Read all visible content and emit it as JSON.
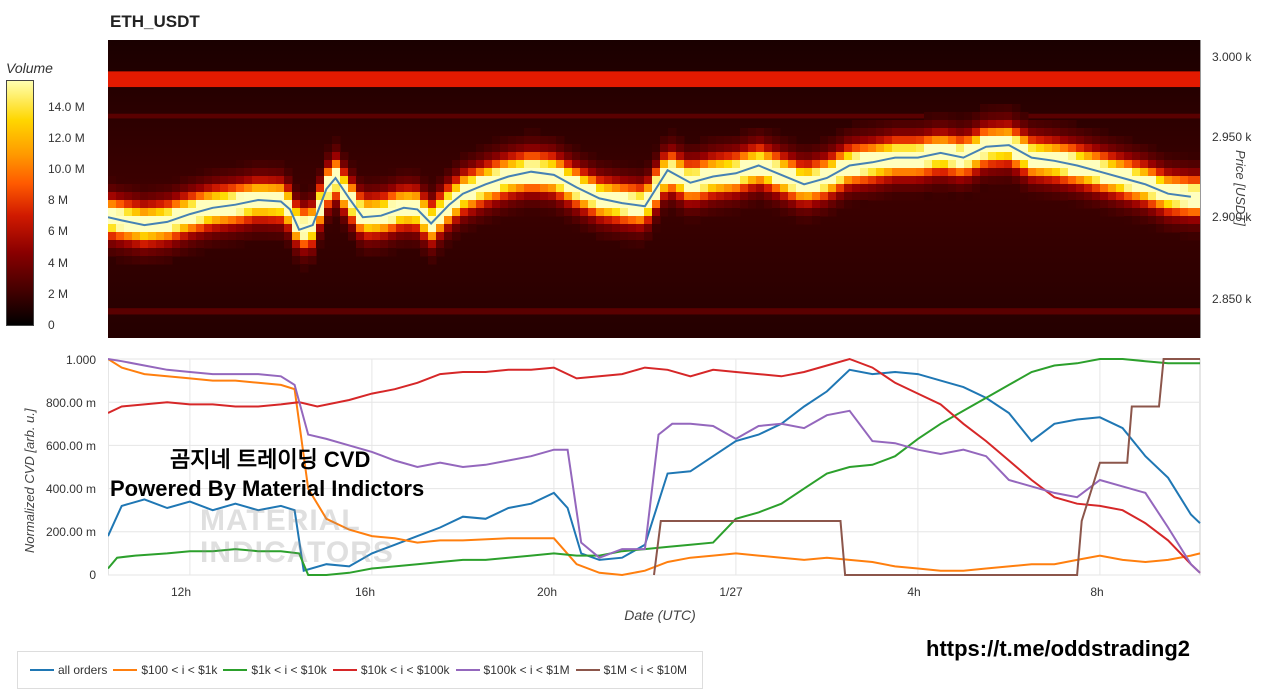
{
  "title": "ETH_USDT",
  "colorbar": {
    "title": "Volume",
    "ticks": [
      "14.0 M",
      "12.0 M",
      "10.0 M",
      "8 M",
      "6 M",
      "4 M",
      "2 M",
      "0"
    ]
  },
  "price_axis": {
    "label": "Price [USDT]",
    "ticks": [
      "3.000 k",
      "2.950 k",
      "2.900 k",
      "2.850 k"
    ]
  },
  "cvd_axis": {
    "label": "Normalized CVD [arb. u.]",
    "ticks": [
      "1.000",
      "800.00 m",
      "600.00 m",
      "400.00 m",
      "200.00 m",
      "0"
    ]
  },
  "x_axis": {
    "label": "Date (UTC)",
    "ticks": [
      "12h",
      "16h",
      "20h",
      "1/27",
      "4h",
      "8h"
    ]
  },
  "overlay": {
    "line1": "곰지네 트레이딩 CVD",
    "line2": "Powered By Material Indictors",
    "watermark_line1": "MATERIAL",
    "watermark_line2": "INDICATORS",
    "link": "https://t.me/oddstrading2"
  },
  "legend": [
    {
      "label": "all orders",
      "color": "#1f77b4"
    },
    {
      "label": "$100 < i < $1k",
      "color": "#ff7f0e"
    },
    {
      "label": "$1k < i < $10k",
      "color": "#2ca02c"
    },
    {
      "label": "$10k < i < $100k",
      "color": "#d62728"
    },
    {
      "label": "$100k < i < $1M",
      "color": "#9467bd"
    },
    {
      "label": "$1M < i < $10M",
      "color": "#8c564b"
    }
  ],
  "chart_data": [
    {
      "type": "heatmap",
      "title": "ETH_USDT",
      "ylabel": "Price [USDT]",
      "ylim": [
        2823,
        3013
      ],
      "colorbar_label": "Volume",
      "colorbar_range": [
        0,
        15000000
      ],
      "price_series": {
        "name": "price",
        "color": "#4682b4",
        "hours": [
          10.2,
          10.5,
          11.0,
          11.5,
          12.0,
          12.5,
          13.0,
          13.5,
          14.0,
          14.2,
          14.4,
          14.7,
          15.0,
          15.2,
          15.5,
          15.8,
          16.2,
          16.7,
          17.0,
          17.3,
          17.7,
          18.0,
          18.5,
          19.0,
          19.5,
          20.0,
          20.5,
          21.0,
          21.5,
          22.0,
          22.5,
          23.0,
          23.5,
          24.0,
          24.5,
          25.0,
          25.5,
          26.0,
          26.5,
          27.0,
          27.5,
          28.0,
          28.5,
          29.0,
          29.5,
          30.0,
          30.5,
          31.0,
          31.5,
          32.0,
          32.5,
          33.0,
          33.5,
          34.0
        ],
        "price": [
          2900,
          2898,
          2895,
          2897,
          2902,
          2906,
          2908,
          2911,
          2910,
          2905,
          2892,
          2895,
          2918,
          2925,
          2912,
          2900,
          2901,
          2906,
          2905,
          2896,
          2908,
          2915,
          2921,
          2926,
          2929,
          2927,
          2919,
          2912,
          2909,
          2907,
          2930,
          2922,
          2926,
          2928,
          2933,
          2927,
          2921,
          2925,
          2933,
          2935,
          2938,
          2938,
          2941,
          2938,
          2945,
          2946,
          2938,
          2936,
          2933,
          2929,
          2925,
          2921,
          2915,
          2913
        ]
      }
    },
    {
      "type": "line",
      "xlabel": "Date (UTC)",
      "ylabel": "Normalized CVD [arb. u.]",
      "xlim": [
        10.2,
        34.2
      ],
      "ylim": [
        0,
        1
      ],
      "x_ticks": {
        "12h": 12,
        "16h": 16,
        "20h": 20,
        "1/27": 24,
        "4h": 28,
        "8h": 32
      },
      "series": [
        {
          "name": "all orders",
          "color": "#1f77b4",
          "x": [
            10.2,
            10.5,
            11.0,
            11.5,
            12.0,
            12.5,
            13.0,
            13.5,
            14.0,
            14.3,
            14.5,
            15.0,
            15.5,
            16.0,
            16.5,
            17.0,
            17.5,
            18.0,
            18.5,
            19.0,
            19.5,
            20.0,
            20.3,
            20.6,
            21.0,
            21.5,
            22.0,
            22.5,
            23.0,
            23.5,
            24.0,
            24.5,
            25.0,
            25.5,
            26.0,
            26.5,
            27.0,
            27.5,
            28.0,
            28.5,
            29.0,
            29.5,
            30.0,
            30.5,
            31.0,
            31.5,
            32.0,
            32.5,
            33.0,
            33.5,
            34.0,
            34.2
          ],
          "y": [
            0.18,
            0.32,
            0.35,
            0.31,
            0.34,
            0.3,
            0.33,
            0.3,
            0.32,
            0.3,
            0.02,
            0.05,
            0.04,
            0.1,
            0.14,
            0.18,
            0.22,
            0.27,
            0.26,
            0.31,
            0.33,
            0.38,
            0.31,
            0.1,
            0.07,
            0.08,
            0.14,
            0.47,
            0.48,
            0.55,
            0.62,
            0.65,
            0.7,
            0.78,
            0.85,
            0.95,
            0.93,
            0.94,
            0.93,
            0.9,
            0.87,
            0.82,
            0.75,
            0.62,
            0.7,
            0.72,
            0.73,
            0.68,
            0.55,
            0.45,
            0.28,
            0.24
          ]
        },
        {
          "name": "$100 < i < $1k",
          "color": "#ff7f0e",
          "x": [
            10.2,
            10.5,
            11.0,
            11.5,
            12.0,
            12.5,
            13.0,
            13.5,
            14.0,
            14.3,
            14.6,
            15.0,
            15.5,
            16.0,
            16.5,
            17.0,
            17.5,
            18.0,
            19.0,
            20.0,
            20.5,
            21.0,
            21.5,
            22.0,
            22.5,
            23.0,
            23.5,
            24.0,
            24.5,
            25.0,
            25.5,
            26.0,
            26.5,
            27.0,
            27.5,
            28.0,
            28.5,
            29.0,
            29.5,
            30.0,
            30.5,
            31.0,
            31.5,
            32.0,
            32.5,
            33.0,
            33.5,
            34.0,
            34.2
          ],
          "y": [
            1.0,
            0.96,
            0.93,
            0.92,
            0.91,
            0.9,
            0.9,
            0.89,
            0.88,
            0.86,
            0.4,
            0.26,
            0.21,
            0.18,
            0.17,
            0.15,
            0.16,
            0.16,
            0.17,
            0.17,
            0.05,
            0.01,
            0.0,
            0.02,
            0.06,
            0.08,
            0.09,
            0.1,
            0.09,
            0.08,
            0.07,
            0.08,
            0.07,
            0.06,
            0.04,
            0.03,
            0.02,
            0.02,
            0.03,
            0.04,
            0.05,
            0.05,
            0.07,
            0.09,
            0.07,
            0.06,
            0.07,
            0.09,
            0.1
          ]
        },
        {
          "name": "$1k < i < $10k",
          "color": "#2ca02c",
          "x": [
            10.2,
            10.4,
            10.8,
            11.5,
            12.0,
            12.5,
            13.0,
            13.5,
            14.0,
            14.4,
            14.6,
            15.0,
            15.5,
            16.0,
            16.5,
            17.0,
            17.5,
            18.0,
            18.5,
            19.0,
            19.5,
            20.0,
            20.5,
            21.0,
            21.5,
            22.0,
            22.5,
            23.0,
            23.5,
            24.0,
            24.5,
            25.0,
            25.5,
            26.0,
            26.5,
            27.0,
            27.5,
            28.0,
            28.5,
            29.0,
            29.5,
            30.0,
            30.5,
            31.0,
            31.5,
            32.0,
            32.5,
            33.0,
            33.5,
            34.0,
            34.2
          ],
          "y": [
            0.03,
            0.08,
            0.09,
            0.1,
            0.11,
            0.11,
            0.12,
            0.11,
            0.11,
            0.1,
            0.0,
            0.0,
            0.01,
            0.03,
            0.04,
            0.05,
            0.06,
            0.07,
            0.07,
            0.08,
            0.09,
            0.1,
            0.09,
            0.09,
            0.11,
            0.12,
            0.13,
            0.14,
            0.15,
            0.26,
            0.29,
            0.33,
            0.4,
            0.47,
            0.5,
            0.51,
            0.55,
            0.63,
            0.7,
            0.76,
            0.82,
            0.88,
            0.94,
            0.97,
            0.98,
            1.0,
            1.0,
            0.99,
            0.98,
            0.98,
            0.98
          ]
        },
        {
          "name": "$10k < i < $100k",
          "color": "#d62728",
          "x": [
            10.2,
            10.5,
            11.0,
            11.5,
            12.0,
            12.5,
            13.0,
            13.5,
            14.0,
            14.4,
            14.8,
            15.5,
            16.0,
            16.5,
            17.0,
            17.5,
            18.0,
            18.5,
            19.0,
            19.5,
            20.0,
            20.5,
            21.0,
            21.5,
            22.0,
            22.5,
            23.0,
            23.5,
            24.0,
            24.5,
            25.0,
            25.5,
            26.0,
            26.5,
            27.0,
            27.5,
            28.0,
            28.5,
            29.0,
            29.5,
            30.0,
            30.5,
            31.0,
            31.5,
            32.0,
            32.5,
            33.0,
            33.5,
            34.0,
            34.2
          ],
          "y": [
            0.75,
            0.78,
            0.79,
            0.8,
            0.79,
            0.79,
            0.78,
            0.78,
            0.79,
            0.8,
            0.78,
            0.81,
            0.84,
            0.86,
            0.89,
            0.93,
            0.94,
            0.94,
            0.95,
            0.95,
            0.96,
            0.91,
            0.92,
            0.93,
            0.96,
            0.95,
            0.92,
            0.95,
            0.94,
            0.93,
            0.92,
            0.94,
            0.97,
            1.0,
            0.96,
            0.89,
            0.84,
            0.79,
            0.7,
            0.62,
            0.53,
            0.44,
            0.36,
            0.33,
            0.32,
            0.3,
            0.24,
            0.16,
            0.05,
            0.01
          ]
        },
        {
          "name": "$100k < i < $1M",
          "color": "#9467bd",
          "x": [
            10.2,
            10.5,
            11.0,
            11.5,
            12.0,
            12.5,
            13.0,
            13.5,
            14.0,
            14.3,
            14.6,
            15.0,
            15.5,
            16.0,
            16.5,
            17.0,
            17.5,
            18.0,
            18.5,
            19.0,
            19.5,
            20.0,
            20.3,
            20.6,
            21.0,
            21.5,
            22.0,
            22.3,
            22.6,
            23.0,
            23.5,
            24.0,
            24.5,
            25.0,
            25.5,
            26.0,
            26.5,
            27.0,
            27.5,
            28.0,
            28.5,
            29.0,
            29.5,
            30.0,
            30.5,
            31.0,
            31.5,
            32.0,
            32.5,
            33.0,
            33.5,
            34.0,
            34.2
          ],
          "y": [
            1.0,
            0.99,
            0.97,
            0.95,
            0.94,
            0.93,
            0.93,
            0.93,
            0.92,
            0.88,
            0.65,
            0.63,
            0.6,
            0.57,
            0.53,
            0.5,
            0.52,
            0.5,
            0.51,
            0.53,
            0.55,
            0.58,
            0.58,
            0.15,
            0.08,
            0.12,
            0.12,
            0.65,
            0.7,
            0.7,
            0.69,
            0.63,
            0.69,
            0.7,
            0.68,
            0.74,
            0.76,
            0.62,
            0.61,
            0.58,
            0.56,
            0.58,
            0.55,
            0.44,
            0.41,
            0.38,
            0.36,
            0.44,
            0.41,
            0.38,
            0.22,
            0.05,
            0.01
          ]
        },
        {
          "name": "$1M < i < $10M",
          "color": "#8c564b",
          "x": [
            22.2,
            22.35,
            26.3,
            26.4,
            31.5,
            31.6,
            32.0,
            32.6,
            32.7,
            33.3,
            33.4,
            34.2
          ],
          "y": [
            0.0,
            0.25,
            0.25,
            0.0,
            0.0,
            0.25,
            0.52,
            0.52,
            0.78,
            0.78,
            1.0,
            1.0
          ]
        }
      ]
    }
  ]
}
